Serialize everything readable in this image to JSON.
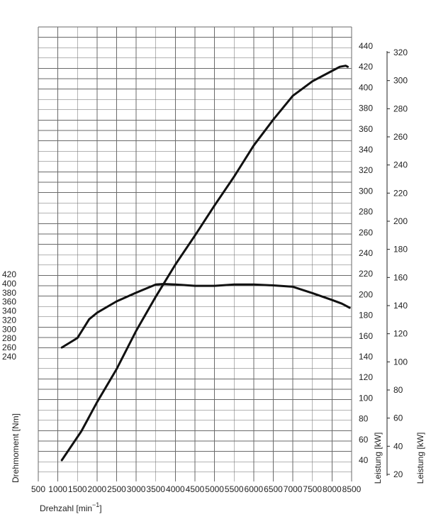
{
  "chart_data": {
    "type": "line",
    "x_axis": {
      "label_main": "Drehzahl [min",
      "label_sup": "−1",
      "label_end": "]",
      "ticks": [
        500,
        1000,
        1500,
        2000,
        2500,
        3000,
        3500,
        4000,
        4500,
        5000,
        5500,
        6000,
        6500,
        7000,
        7500,
        8000,
        8500
      ],
      "range": [
        500,
        8500
      ]
    },
    "y_left": {
      "label": "Drehmoment [Nm]",
      "ticks": [
        240,
        260,
        280,
        300,
        320,
        340,
        360,
        380,
        400,
        420
      ],
      "range": [
        240,
        420
      ]
    },
    "y_right_inner": {
      "label": "Leistung [kW]",
      "ticks": [
        40,
        60,
        80,
        100,
        120,
        140,
        160,
        180,
        200,
        220,
        240,
        260,
        280,
        300,
        320,
        340,
        360,
        380,
        400,
        420,
        440
      ],
      "range": [
        30,
        440
      ]
    },
    "y_right_outer": {
      "label": "Leistung [kW]",
      "ticks": [
        20,
        40,
        60,
        80,
        100,
        120,
        140,
        160,
        180,
        200,
        220,
        240,
        260,
        280,
        300,
        320
      ],
      "range": [
        20,
        320
      ]
    },
    "grid": true,
    "series": [
      {
        "axis": "left",
        "x": [
          1100,
          1500,
          1800,
          2000,
          2500,
          3000,
          3500,
          3700,
          4000,
          4500,
          5000,
          5500,
          6000,
          6500,
          7000,
          7500,
          8000,
          8250,
          8450
        ],
        "y": [
          260,
          281,
          322,
          336,
          361,
          380,
          398,
          399,
          398,
          395,
          395,
          398,
          398,
          396,
          393,
          379,
          364,
          356,
          347
        ]
      },
      {
        "axis": "right_inner",
        "x": [
          1100,
          1600,
          2000,
          2500,
          3000,
          3500,
          4000,
          4500,
          5000,
          5500,
          6000,
          6500,
          7000,
          7500,
          8000,
          8200,
          8350,
          8400
        ],
        "y": [
          40,
          68,
          96,
          128,
          165,
          198,
          229,
          257,
          286,
          314,
          344,
          369,
          392,
          406,
          416,
          420,
          421,
          420
        ]
      }
    ]
  }
}
